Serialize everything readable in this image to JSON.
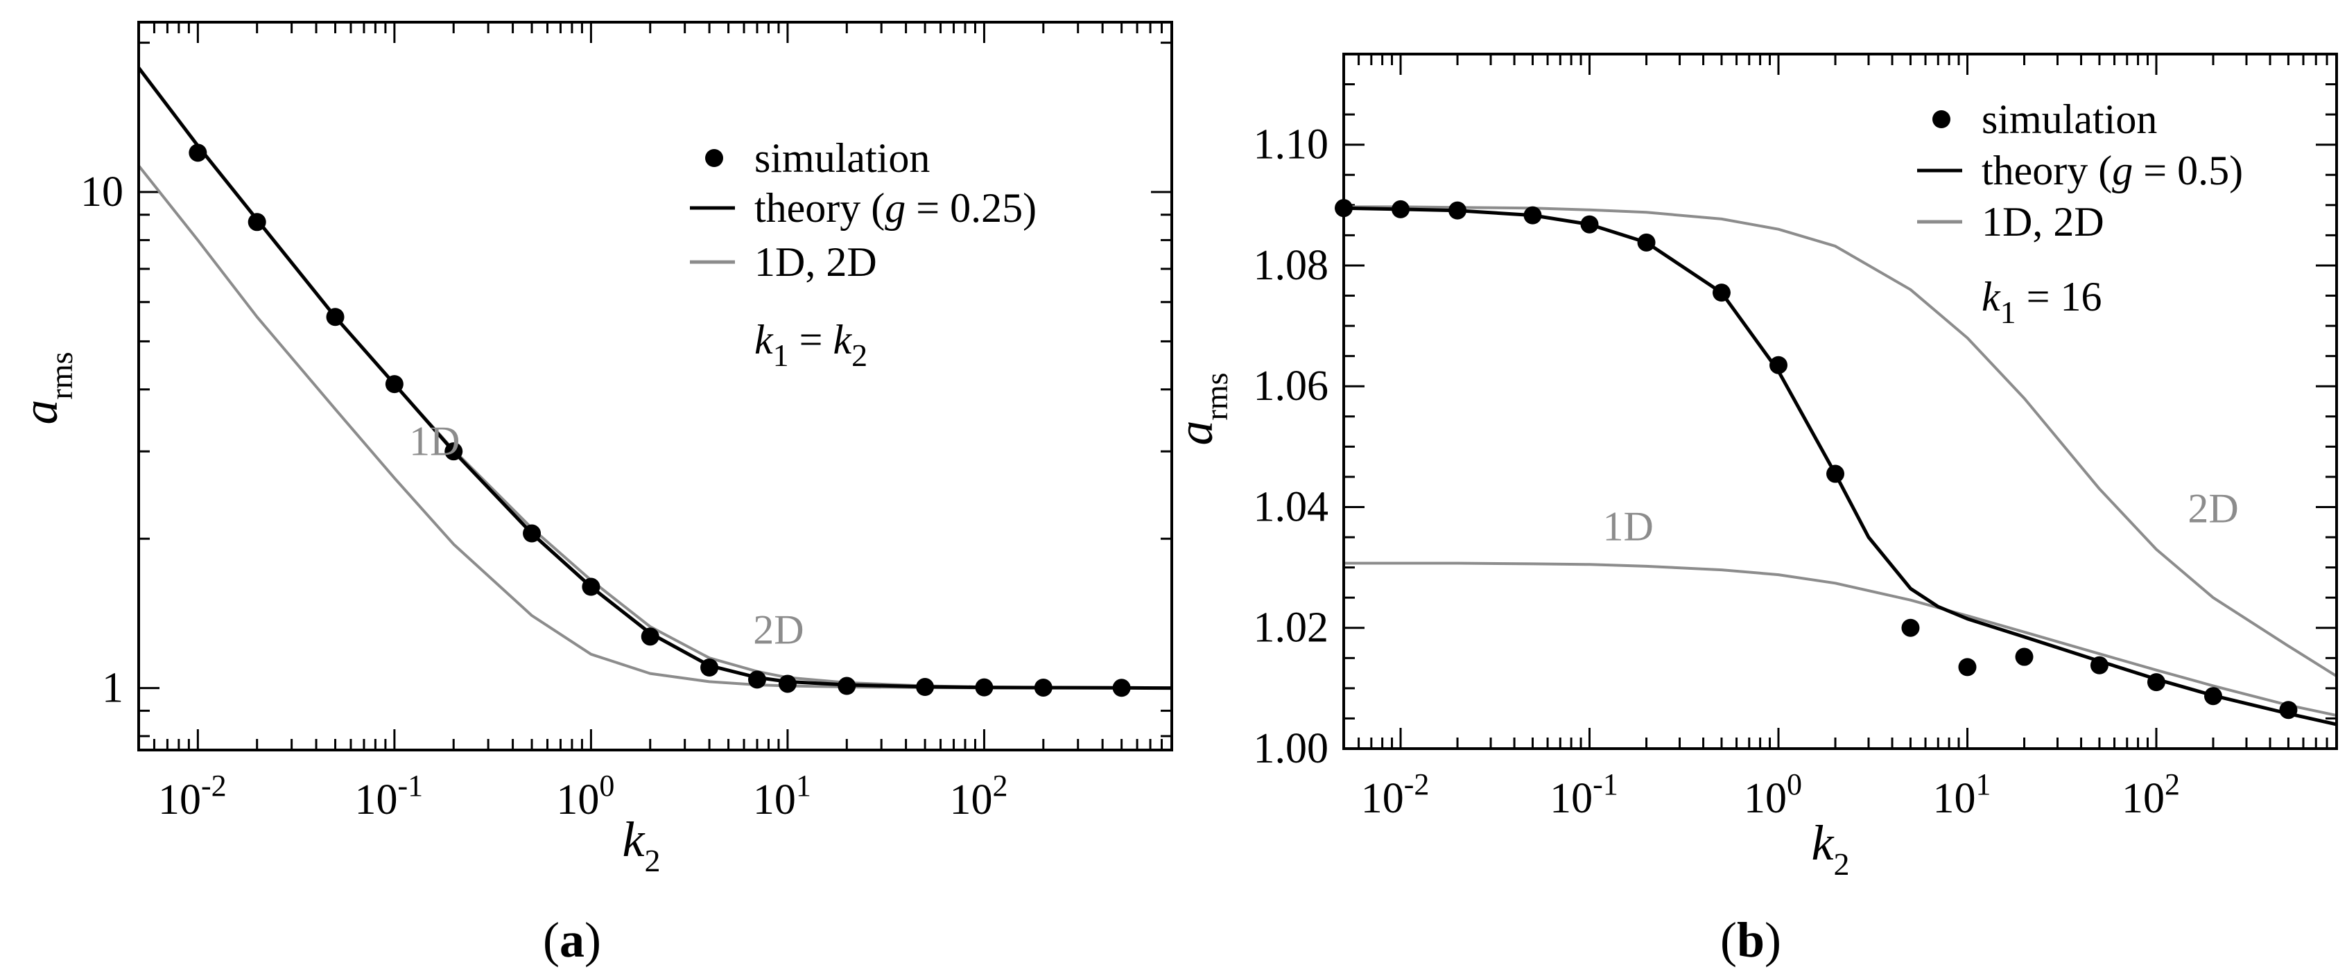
{
  "colors": {
    "simulation": "#000000",
    "theory": "#000000",
    "reference": "#8c8c8c",
    "axes": "#000000"
  },
  "chart_data": [
    {
      "panel": "(a)",
      "panel_label": {
        "open": "(",
        "letter": "a",
        "close": ")"
      },
      "type": "line",
      "xscale": "log",
      "yscale": "log",
      "xlim": [
        0.005,
        900
      ],
      "ylim": [
        0.75,
        22
      ],
      "xlabel": {
        "main": "k",
        "sub": "2"
      },
      "ylabel": {
        "main": "a",
        "sub": "rms"
      },
      "xticks": [
        {
          "value": 0.01,
          "base": "10",
          "exp": "-2"
        },
        {
          "value": 0.1,
          "base": "10",
          "exp": "-1"
        },
        {
          "value": 1,
          "base": "10",
          "exp": "0"
        },
        {
          "value": 10,
          "base": "10",
          "exp": "1"
        },
        {
          "value": 100,
          "base": "10",
          "exp": "2"
        }
      ],
      "yticks": [
        {
          "value": 1,
          "label": "1"
        },
        {
          "value": 10,
          "label": "10"
        }
      ],
      "legend": {
        "position": "top-right",
        "items": [
          {
            "kind": "marker",
            "label": "simulation"
          },
          {
            "kind": "line",
            "color": "theory",
            "text_before": "theory (",
            "var": "g",
            "text_after": " = 0.25)"
          },
          {
            "kind": "line",
            "color": "reference",
            "text_before": "1D, 2D",
            "var": "",
            "text_after": ""
          }
        ],
        "note": {
          "v1": "k",
          "s1": "1",
          "eq": " = ",
          "v2": "k",
          "s2": "2"
        }
      },
      "annotations": [
        {
          "text": "1D",
          "x": 0.16,
          "y": 2.95
        },
        {
          "text": "2D",
          "x": 9.0,
          "y": 1.23
        }
      ],
      "series": [
        {
          "name": "simulation",
          "kind": "scatter",
          "x": [
            0.01,
            0.02,
            0.05,
            0.1,
            0.2,
            0.5,
            1,
            2,
            4,
            7,
            10,
            20,
            50,
            100,
            200,
            500
          ],
          "y": [
            12.0,
            8.7,
            5.6,
            4.1,
            3.0,
            2.05,
            1.6,
            1.27,
            1.1,
            1.04,
            1.02,
            1.01,
            1.005,
            1.003,
            1.002,
            1.001
          ]
        },
        {
          "name": "theory (g = 0.25)",
          "kind": "line",
          "x": [
            0.005,
            0.01,
            0.02,
            0.05,
            0.1,
            0.2,
            0.5,
            1,
            2,
            4,
            7,
            10,
            20,
            50,
            100,
            200,
            500,
            900
          ],
          "y": [
            17.8,
            12.4,
            8.8,
            5.6,
            4.1,
            3.0,
            2.05,
            1.6,
            1.29,
            1.11,
            1.05,
            1.03,
            1.015,
            1.006,
            1.003,
            1.002,
            1.001,
            1.0
          ]
        },
        {
          "name": "2D",
          "kind": "line",
          "x": [
            0.005,
            0.01,
            0.02,
            0.05,
            0.1,
            0.2,
            0.5,
            1,
            2,
            4,
            7,
            10,
            20,
            50,
            100,
            200,
            500,
            900
          ],
          "y": [
            17.8,
            12.4,
            8.8,
            5.6,
            4.1,
            3.02,
            2.1,
            1.65,
            1.33,
            1.15,
            1.08,
            1.05,
            1.025,
            1.01,
            1.005,
            1.003,
            1.001,
            1.0
          ]
        },
        {
          "name": "1D",
          "kind": "line",
          "x": [
            0.005,
            0.01,
            0.02,
            0.05,
            0.1,
            0.2,
            0.5,
            1,
            2,
            4,
            7,
            10,
            20,
            50,
            100,
            200,
            500,
            900
          ],
          "y": [
            11.3,
            8.0,
            5.6,
            3.65,
            2.65,
            1.95,
            1.4,
            1.17,
            1.07,
            1.03,
            1.015,
            1.01,
            1.005,
            1.002,
            1.001,
            1.0,
            1.0,
            1.0
          ]
        }
      ]
    },
    {
      "panel": "(b)",
      "panel_label": {
        "open": "(",
        "letter": "b",
        "close": ")"
      },
      "type": "line",
      "xscale": "log",
      "yscale": "linear",
      "xlim": [
        0.005,
        900
      ],
      "ylim": [
        1.0,
        1.115
      ],
      "xlabel": {
        "main": "k",
        "sub": "2"
      },
      "ylabel": {
        "main": "a",
        "sub": "rms"
      },
      "xticks": [
        {
          "value": 0.01,
          "base": "10",
          "exp": "-2"
        },
        {
          "value": 0.1,
          "base": "10",
          "exp": "-1"
        },
        {
          "value": 1,
          "base": "10",
          "exp": "0"
        },
        {
          "value": 10,
          "base": "10",
          "exp": "1"
        },
        {
          "value": 100,
          "base": "10",
          "exp": "2"
        }
      ],
      "yticks": [
        {
          "value": 1.0,
          "label": "1.00"
        },
        {
          "value": 1.02,
          "label": "1.02"
        },
        {
          "value": 1.04,
          "label": "1.04"
        },
        {
          "value": 1.06,
          "label": "1.06"
        },
        {
          "value": 1.08,
          "label": "1.08"
        },
        {
          "value": 1.1,
          "label": "1.10"
        }
      ],
      "legend": {
        "position": "top-right",
        "items": [
          {
            "kind": "marker",
            "label": "simulation"
          },
          {
            "kind": "line",
            "color": "theory",
            "text_before": "theory (",
            "var": "g",
            "text_after": " = 0.5)"
          },
          {
            "kind": "line",
            "color": "reference",
            "text_before": "1D, 2D",
            "var": "",
            "text_after": ""
          }
        ],
        "note": {
          "v1": "k",
          "s1": "1",
          "eq": " = 16",
          "v2": "",
          "s2": ""
        }
      },
      "annotations": [
        {
          "text": "1D",
          "x": 0.16,
          "y": 1.0345
        },
        {
          "text": "2D",
          "x": 200,
          "y": 1.0375
        }
      ],
      "series": [
        {
          "name": "simulation",
          "kind": "scatter",
          "x": [
            0.005,
            0.01,
            0.02,
            0.05,
            0.1,
            0.2,
            0.5,
            1,
            2,
            5,
            10,
            20,
            50,
            100,
            200,
            500
          ],
          "y": [
            1.0895,
            1.0893,
            1.0891,
            1.0883,
            1.0868,
            1.0838,
            1.0755,
            1.0635,
            1.0455,
            1.02,
            1.0135,
            1.0152,
            1.0138,
            1.011,
            1.0087,
            1.0064
          ]
        },
        {
          "name": "theory (g = 0.5)",
          "kind": "line",
          "x": [
            0.005,
            0.01,
            0.02,
            0.05,
            0.1,
            0.2,
            0.5,
            1,
            2,
            3,
            5,
            7,
            10,
            20,
            50,
            100,
            200,
            500,
            900
          ],
          "y": [
            1.0895,
            1.0893,
            1.0891,
            1.0883,
            1.0868,
            1.0838,
            1.0755,
            1.0625,
            1.0455,
            1.035,
            1.0265,
            1.0235,
            1.0215,
            1.0185,
            1.0145,
            1.0115,
            1.0088,
            1.0058,
            1.004
          ]
        },
        {
          "name": "2D",
          "kind": "line",
          "x": [
            0.005,
            0.01,
            0.02,
            0.05,
            0.1,
            0.2,
            0.5,
            1,
            2,
            5,
            10,
            20,
            50,
            100,
            200,
            500,
            900
          ],
          "y": [
            1.0897,
            1.0897,
            1.0896,
            1.0895,
            1.0892,
            1.0888,
            1.0877,
            1.086,
            1.0832,
            1.076,
            1.068,
            1.058,
            1.043,
            1.033,
            1.025,
            1.017,
            1.012
          ]
        },
        {
          "name": "1D",
          "kind": "line",
          "x": [
            0.005,
            0.01,
            0.02,
            0.05,
            0.1,
            0.2,
            0.5,
            1,
            2,
            5,
            10,
            20,
            50,
            100,
            200,
            500,
            900
          ],
          "y": [
            1.0307,
            1.0307,
            1.0307,
            1.0306,
            1.0305,
            1.0302,
            1.0296,
            1.0288,
            1.0274,
            1.0246,
            1.022,
            1.0193,
            1.0157,
            1.013,
            1.0104,
            1.0072,
            1.0055
          ]
        }
      ]
    }
  ]
}
